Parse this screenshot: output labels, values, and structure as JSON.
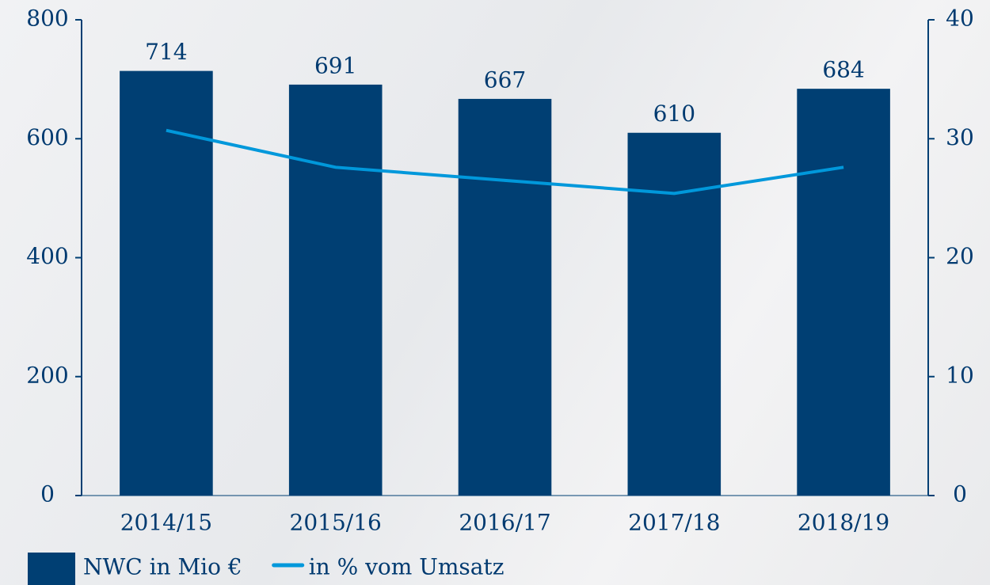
{
  "chart_data": {
    "type": "bar",
    "categories": [
      "2014/15",
      "2015/16",
      "2016/17",
      "2017/18",
      "2018/19"
    ],
    "series": [
      {
        "name": "NWC in Mio €",
        "type": "bar",
        "color": "#003f73",
        "values": [
          714,
          691,
          667,
          610,
          684
        ]
      },
      {
        "name": "in % vom Umsatz",
        "type": "line",
        "axis": "y2",
        "color": "#0098db",
        "values": [
          30.7,
          27.6,
          26.5,
          25.4,
          27.6
        ]
      }
    ],
    "ylim": [
      0,
      800
    ],
    "yticks": [
      0,
      200,
      400,
      600,
      800
    ],
    "y2lim": [
      0,
      40
    ],
    "y2ticks": [
      0,
      10,
      20,
      30,
      40
    ],
    "legend": "bottom-left",
    "data_labels": true
  }
}
